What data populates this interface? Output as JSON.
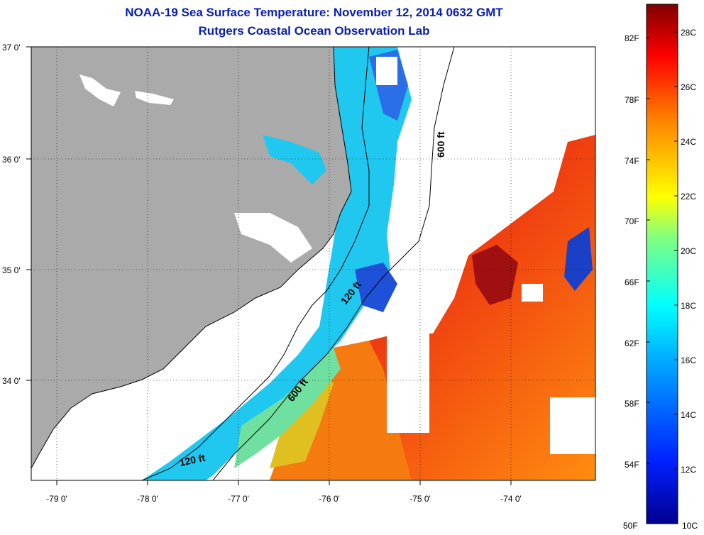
{
  "title": {
    "line1": "NOAA-19 Sea Surface Temperature:  November 12, 2014 0632 GMT",
    "line2": "Rutgers Coastal Ocean Observation Lab"
  },
  "map": {
    "lat_labels": [
      "37 0'",
      "36 0'",
      "35 0'",
      "34 0'"
    ],
    "lon_labels": [
      "-79 0'",
      "-78 0'",
      "-77 0'",
      "-76 0'",
      "-75 0'",
      "-74 0'"
    ],
    "contours": [
      "600 ft",
      "120 ft",
      "600 ft",
      "120 ft"
    ],
    "colors": {
      "land": "#aaaaaa",
      "no_data": "#ffffff",
      "cold_water": "#1e60e0",
      "cool_water": "#20c0f0",
      "mid_water": "#60e0a0",
      "warm_water": "#ff9010",
      "hot_water": "#e02000"
    }
  },
  "colorbar": {
    "fahrenheit": [
      "82F",
      "78F",
      "74F",
      "70F",
      "66F",
      "62F",
      "58F",
      "54F",
      "50F"
    ],
    "celsius": [
      "28C",
      "26C",
      "24C",
      "22C",
      "20C",
      "18C",
      "16C",
      "14C",
      "12C",
      "10C"
    ]
  }
}
